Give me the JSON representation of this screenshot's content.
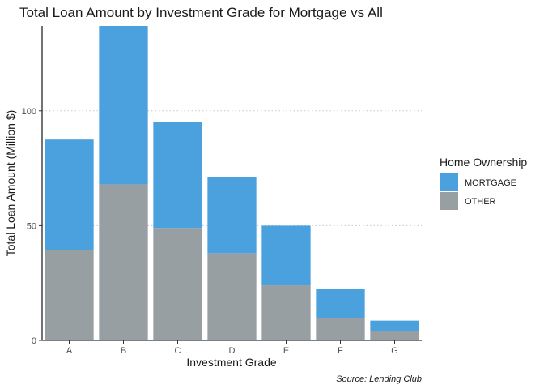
{
  "chart_data": {
    "type": "bar",
    "stacked": true,
    "title": "Total Loan Amount by Investment Grade for Mortgage vs All",
    "xlabel": "Investment Grade",
    "ylabel": "Total Loan Amount (Million $)",
    "categories": [
      "A",
      "B",
      "C",
      "D",
      "E",
      "F",
      "G"
    ],
    "series": [
      {
        "name": "OTHER",
        "values": [
          39.5,
          68,
          49,
          38,
          24,
          9.8,
          4.1
        ],
        "color": "#989fa3"
      },
      {
        "name": "MORTGAGE",
        "values": [
          48,
          69,
          46,
          33,
          26,
          12.5,
          4.5
        ],
        "color": "#4ba0de"
      }
    ],
    "ylim": [
      0,
      137
    ],
    "yticks": [
      0,
      50,
      100
    ],
    "grid": "horizontal dotted",
    "legend": {
      "title": "Home Ownership",
      "placement": "right",
      "entries": [
        "MORTGAGE",
        "OTHER"
      ]
    },
    "caption": "Source: Lending Club"
  }
}
